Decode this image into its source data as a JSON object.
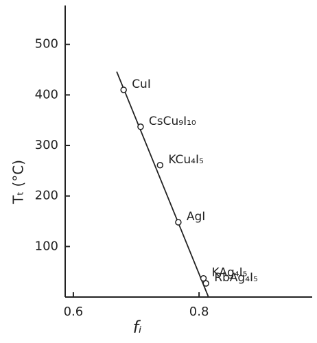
{
  "chart_data": {
    "type": "scatter",
    "x_label": "fᵢ",
    "y_label": "Tₜ (°C)",
    "categories": [
      "CuI",
      "CsCu₉I₁₀",
      "KCu₄I₅",
      "AgI",
      "KAg₄I₅",
      "RbAg₄I₅"
    ],
    "x": [
      0.68,
      0.707,
      0.738,
      0.767,
      0.807,
      0.811
    ],
    "values": [
      410,
      337,
      261,
      148,
      37,
      27
    ],
    "fit_line": {
      "x": [
        0.669,
        0.815
      ],
      "y": [
        446,
        0
      ]
    },
    "color": "#222222",
    "xlim": [
      0.587,
      0.98
    ],
    "ylim": [
      0,
      577
    ],
    "xticks": [
      0.6,
      0.8
    ],
    "yticks": [
      100,
      200,
      300,
      400,
      500
    ]
  }
}
